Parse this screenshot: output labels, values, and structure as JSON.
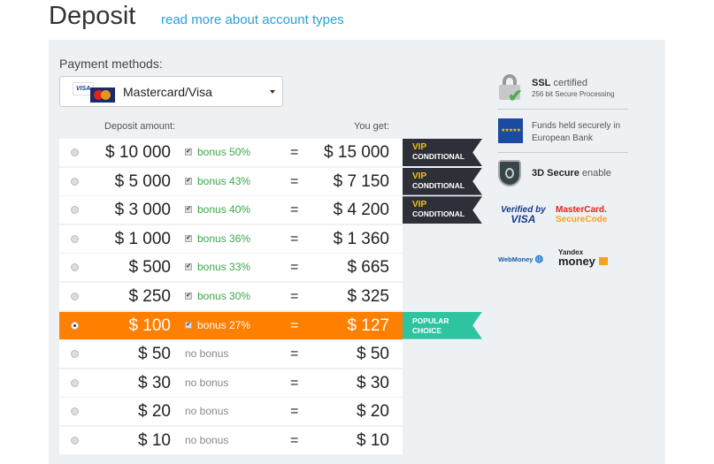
{
  "header": {
    "title": "Deposit",
    "link": "read more about account types"
  },
  "payment": {
    "label": "Payment methods:",
    "selected": "Mastercard/Visa",
    "visa_logo": "VISA"
  },
  "table": {
    "deposit_header": "Deposit amount:",
    "get_header": "You get:",
    "rows": [
      {
        "amount": "$ 10 000",
        "bonus": "bonus 50%",
        "has_bonus": true,
        "get": "$ 15 000",
        "badge": "vip"
      },
      {
        "amount": "$ 5 000",
        "bonus": "bonus 43%",
        "has_bonus": true,
        "get": "$ 7 150",
        "badge": "vip"
      },
      {
        "amount": "$ 3 000",
        "bonus": "bonus 40%",
        "has_bonus": true,
        "get": "$ 4 200",
        "badge": "vip"
      },
      {
        "amount": "$ 1 000",
        "bonus": "bonus 36%",
        "has_bonus": true,
        "get": "$ 1 360"
      },
      {
        "amount": "$ 500",
        "bonus": "bonus 33%",
        "has_bonus": true,
        "get": "$ 665"
      },
      {
        "amount": "$ 250",
        "bonus": "bonus 30%",
        "has_bonus": true,
        "get": "$ 325"
      },
      {
        "amount": "$ 100",
        "bonus": "bonus 27%",
        "has_bonus": true,
        "get": "$ 127",
        "badge": "popular",
        "selected": true
      },
      {
        "amount": "$ 50",
        "bonus": "no bonus",
        "has_bonus": false,
        "get": "$ 50"
      },
      {
        "amount": "$ 30",
        "bonus": "no bonus",
        "has_bonus": false,
        "get": "$ 30"
      },
      {
        "amount": "$ 20",
        "bonus": "no bonus",
        "has_bonus": false,
        "get": "$ 20"
      },
      {
        "amount": "$ 10",
        "bonus": "no bonus",
        "has_bonus": false,
        "get": "$ 10"
      }
    ],
    "equals": "=",
    "vip": {
      "line1": "VIP",
      "line2": "CONDITIONAL"
    },
    "popular": {
      "line1": "POPULAR",
      "line2": "CHOICE"
    }
  },
  "security": {
    "ssl_bold": "SSL",
    "ssl_rest": " certified",
    "ssl_sub": "256 bit Secure Processing",
    "funds1": "Funds held securely in",
    "funds2": "European Bank",
    "secure_bold": "3D Secure",
    "secure_rest": " enable",
    "logos": {
      "verified1": "Verified by",
      "verified2": "VISA",
      "mc1": "MasterCard.",
      "mc2": "SecureCode",
      "webmoney": "WebMoney",
      "yandex1": "Yandex",
      "yandex2": "money"
    }
  },
  "colors": {
    "accent": "#ff7f00",
    "bonus": "#3aa84a",
    "link": "#2a9fd8",
    "vip_bg": "#2d3039",
    "popular_bg": "#2ec4a0"
  }
}
